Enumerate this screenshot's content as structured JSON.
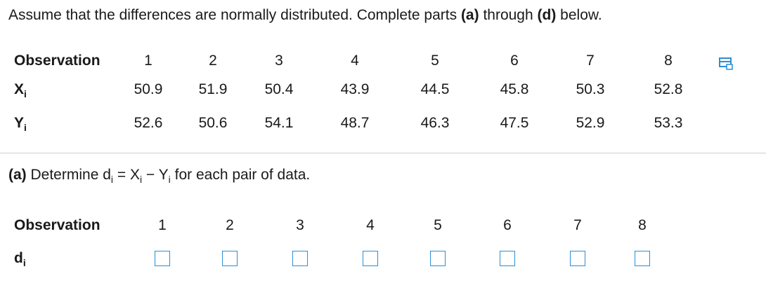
{
  "intro": {
    "parts": [
      "Assume that the differences are normally distributed. Complete parts ",
      "(a)",
      " through ",
      "(d)",
      " below."
    ]
  },
  "table1": {
    "header": {
      "label": "Observation",
      "columns": [
        1,
        2,
        3,
        4,
        5,
        6,
        7,
        8
      ]
    },
    "rows": [
      {
        "label": "X",
        "subscript": "i",
        "values": [
          50.9,
          51.9,
          50.4,
          43.9,
          44.5,
          45.8,
          50.3,
          52.8
        ]
      },
      {
        "label": "Y",
        "subscript": "i",
        "values": [
          52.6,
          50.6,
          54.1,
          48.7,
          46.3,
          47.5,
          52.9,
          53.3
        ]
      }
    ]
  },
  "part_a": {
    "label": "(a)",
    "parts": [
      " Determine d",
      "i",
      " = X",
      "i",
      " − Y",
      "i",
      " for each pair of data."
    ]
  },
  "table2": {
    "header": {
      "label": "Observation",
      "columns": [
        1,
        2,
        3,
        4,
        5,
        6,
        7,
        8
      ]
    },
    "rows": [
      {
        "label": "d",
        "subscript": "i"
      }
    ]
  }
}
